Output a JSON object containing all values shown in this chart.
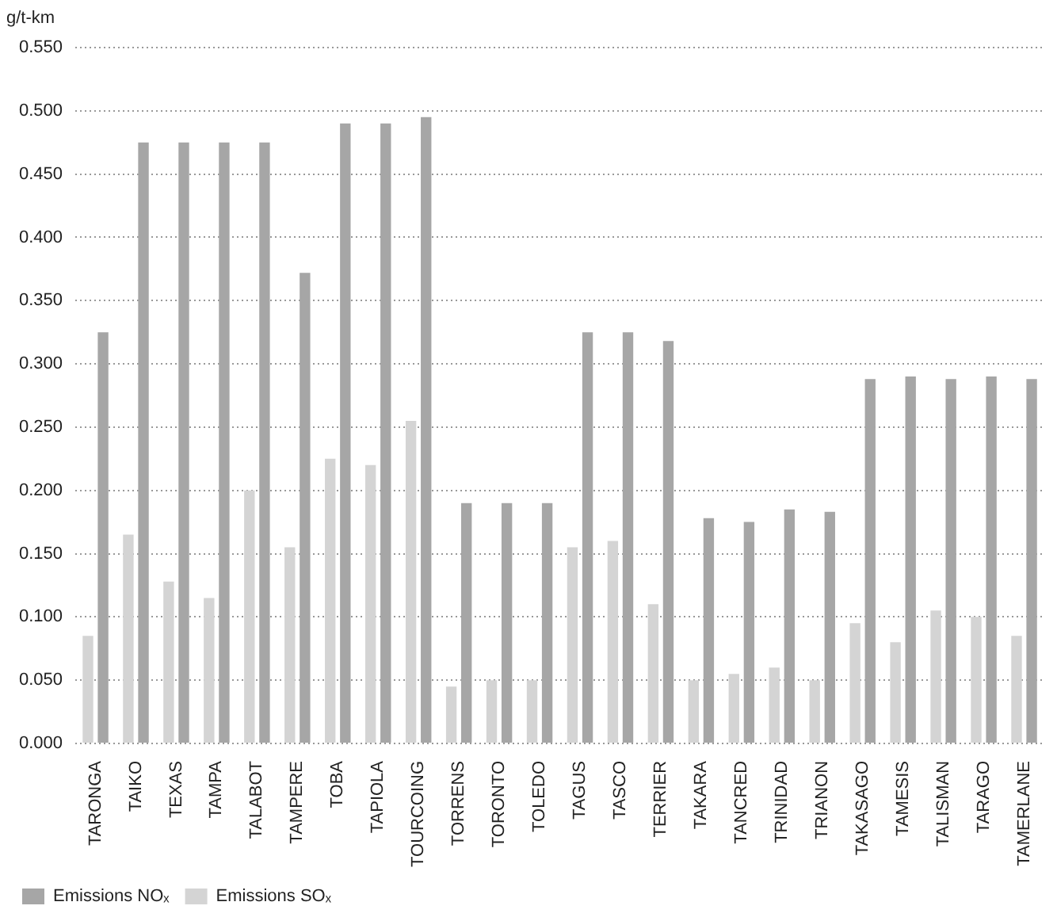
{
  "chart_data": {
    "type": "bar",
    "ylabel": "g/t-km",
    "categories": [
      "TARONGA",
      "TAIKO",
      "TEXAS",
      "TAMPA",
      "TALABOT",
      "TAMPERE",
      "TOBA",
      "TAPIOLA",
      "TOURCOING",
      "TORRENS",
      "TORONTO",
      "TOLEDO",
      "TAGUS",
      "TASCO",
      "TERRIER",
      "TAKARA",
      "TANCRED",
      "TRINIDAD",
      "TRIANON",
      "TAKASAGO",
      "TAMESIS",
      "TALISMAN",
      "TARAGO",
      "TAMERLANE"
    ],
    "series": [
      {
        "name": "Emissions SOₓ",
        "color": "#d4d4d4",
        "values": [
          0.085,
          0.165,
          0.128,
          0.115,
          0.2,
          0.155,
          0.225,
          0.22,
          0.255,
          0.045,
          0.05,
          0.05,
          0.155,
          0.16,
          0.11,
          0.05,
          0.055,
          0.06,
          0.05,
          0.095,
          0.08,
          0.105,
          0.1,
          0.085
        ]
      },
      {
        "name": "Emissions NOₓ",
        "color": "#a6a6a6",
        "values": [
          0.325,
          0.475,
          0.475,
          0.475,
          0.475,
          0.372,
          0.49,
          0.49,
          0.495,
          0.19,
          0.19,
          0.19,
          0.325,
          0.325,
          0.318,
          0.178,
          0.175,
          0.185,
          0.183,
          0.288,
          0.29,
          0.288,
          0.29,
          0.288
        ]
      }
    ],
    "ylim": [
      0,
      0.55
    ],
    "yticks": [
      {
        "value": 0,
        "label": "0.000"
      },
      {
        "value": 0.05,
        "label": "0.050"
      },
      {
        "value": 0.1,
        "label": "0.100"
      },
      {
        "value": 0.15,
        "label": "0.150"
      },
      {
        "value": 0.2,
        "label": "0.200"
      },
      {
        "value": 0.25,
        "label": "0.250"
      },
      {
        "value": 0.3,
        "label": "0.300"
      },
      {
        "value": 0.35,
        "label": "0.350"
      },
      {
        "value": 0.4,
        "label": "0.400"
      },
      {
        "value": 0.45,
        "label": "0.450"
      },
      {
        "value": 0.5,
        "label": "0.500"
      },
      {
        "value": 0.55,
        "label": "0.550"
      }
    ],
    "grid": "y",
    "legend": "bottom left"
  }
}
